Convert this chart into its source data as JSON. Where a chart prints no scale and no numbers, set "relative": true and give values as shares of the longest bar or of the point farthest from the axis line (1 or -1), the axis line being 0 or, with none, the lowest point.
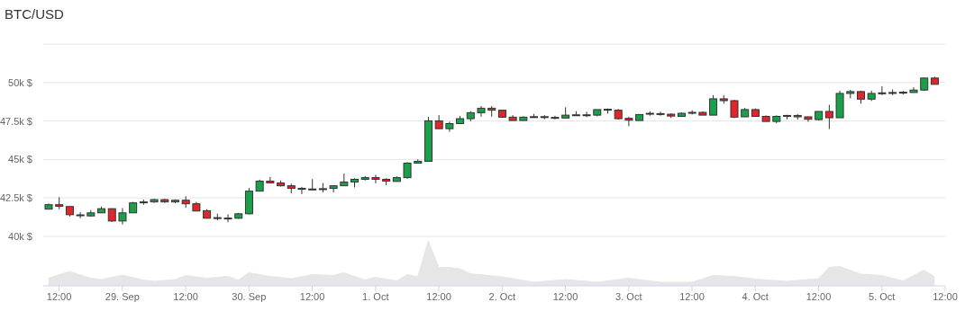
{
  "chart_data": [
    {
      "type": "candlestick",
      "title": "BTC/USD",
      "x": [
        "--09-28T10:00",
        "--09-28T12:00",
        "--09-28T14:00",
        "--09-28T16:00",
        "--09-28T18:00",
        "--09-28T20:00",
        "--09-28T22:00",
        "--09-29T00:00",
        "--09-29T02:00",
        "--09-29T04:00",
        "--09-29T06:00",
        "--09-29T08:00",
        "--09-29T10:00",
        "--09-29T12:00",
        "--09-29T14:00",
        "--09-29T16:00",
        "--09-29T18:00",
        "--09-29T20:00",
        "--09-29T22:00",
        "--09-30T00:00",
        "--09-30T02:00",
        "--09-30T04:00",
        "--09-30T06:00",
        "--09-30T08:00",
        "--09-30T10:00",
        "--09-30T12:00",
        "--09-30T14:00",
        "--09-30T16:00",
        "--09-30T18:00",
        "--09-30T20:00",
        "--09-30T22:00",
        "--10-01T00:00",
        "--10-01T02:00",
        "--10-01T04:00",
        "--10-01T06:00",
        "--10-01T08:00",
        "--10-01T10:00",
        "--10-01T12:00",
        "--10-01T14:00",
        "--10-01T16:00",
        "--10-01T18:00",
        "--10-01T20:00",
        "--10-01T22:00",
        "--10-02T00:00",
        "--10-02T02:00",
        "--10-02T04:00",
        "--10-02T06:00",
        "--10-02T08:00",
        "--10-02T10:00",
        "--10-02T12:00",
        "--10-02T14:00",
        "--10-02T16:00",
        "--10-02T18:00",
        "--10-02T20:00",
        "--10-02T22:00",
        "--10-03T00:00",
        "--10-03T02:00",
        "--10-03T04:00",
        "--10-03T06:00",
        "--10-03T08:00",
        "--10-03T10:00",
        "--10-03T12:00",
        "--10-03T14:00",
        "--10-03T16:00",
        "--10-03T18:00",
        "--10-03T20:00",
        "--10-03T22:00",
        "--10-04T00:00",
        "--10-04T02:00",
        "--10-04T04:00",
        "--10-04T06:00",
        "--10-04T08:00",
        "--10-04T10:00",
        "--10-04T12:00",
        "--10-04T14:00",
        "--10-04T16:00",
        "--10-04T18:00",
        "--10-04T20:00",
        "--10-04T22:00",
        "--10-05T00:00",
        "--10-05T02:00",
        "--10-05T04:00",
        "--10-05T06:00",
        "--10-05T08:00",
        "--10-05T10:00"
      ],
      "ohlc": [
        [
          41770,
          42140,
          41770,
          42060
        ],
        [
          42060,
          42550,
          41770,
          41960
        ],
        [
          41940,
          41940,
          41290,
          41410
        ],
        [
          41400,
          41570,
          41180,
          41360
        ],
        [
          41330,
          41710,
          41290,
          41530
        ],
        [
          41530,
          41940,
          41530,
          41800
        ],
        [
          41800,
          41820,
          40940,
          41000
        ],
        [
          41000,
          41840,
          40780,
          41530
        ],
        [
          41530,
          42240,
          41530,
          42180
        ],
        [
          42200,
          42390,
          42060,
          42240
        ],
        [
          42240,
          42450,
          42180,
          42390
        ],
        [
          42390,
          42450,
          42180,
          42240
        ],
        [
          42240,
          42410,
          42160,
          42350
        ],
        [
          42350,
          42610,
          41860,
          42120
        ],
        [
          42120,
          42240,
          41630,
          41650
        ],
        [
          41670,
          41770,
          41160,
          41180
        ],
        [
          41200,
          41470,
          41040,
          41220
        ],
        [
          41180,
          41430,
          40920,
          41190
        ],
        [
          41180,
          41530,
          41140,
          41470
        ],
        [
          41470,
          43140,
          41430,
          42940
        ],
        [
          42940,
          43690,
          42940,
          43590
        ],
        [
          43590,
          43860,
          43450,
          43470
        ],
        [
          43470,
          43630,
          43240,
          43290
        ],
        [
          43290,
          43430,
          42800,
          43120
        ],
        [
          43120,
          43220,
          42750,
          43080
        ],
        [
          43060,
          43730,
          43060,
          43080
        ],
        [
          43100,
          43470,
          42860,
          43080
        ],
        [
          43120,
          43330,
          42860,
          43290
        ],
        [
          43290,
          44080,
          43290,
          43530
        ],
        [
          43530,
          43780,
          43180,
          43710
        ],
        [
          43710,
          43920,
          43630,
          43820
        ],
        [
          43820,
          44000,
          43450,
          43710
        ],
        [
          43710,
          43780,
          43330,
          43590
        ],
        [
          43570,
          43900,
          43570,
          43820
        ],
        [
          43820,
          44820,
          43750,
          44760
        ],
        [
          44760,
          45000,
          44760,
          44880
        ],
        [
          44880,
          47760,
          44880,
          47510
        ],
        [
          47510,
          47880,
          47000,
          47000
        ],
        [
          47000,
          47450,
          46800,
          47330
        ],
        [
          47330,
          47820,
          47330,
          47650
        ],
        [
          47650,
          48140,
          47490,
          48040
        ],
        [
          48040,
          48470,
          47780,
          48330
        ],
        [
          48330,
          48470,
          47780,
          48200
        ],
        [
          48200,
          48200,
          47710,
          47750
        ],
        [
          47750,
          47880,
          47530,
          47530
        ],
        [
          47530,
          47800,
          47530,
          47750
        ],
        [
          47770,
          47960,
          47770,
          47780
        ],
        [
          47780,
          47880,
          47610,
          47760
        ],
        [
          47710,
          47840,
          47610,
          47730
        ],
        [
          47690,
          48390,
          47690,
          47880
        ],
        [
          47880,
          48140,
          47880,
          47900
        ],
        [
          47880,
          48100,
          47750,
          47900
        ],
        [
          47880,
          48240,
          47800,
          48240
        ],
        [
          48220,
          48310,
          47980,
          48260
        ],
        [
          48200,
          48280,
          47590,
          47650
        ],
        [
          47670,
          47780,
          47160,
          47550
        ],
        [
          47530,
          47920,
          47530,
          47920
        ],
        [
          47960,
          48120,
          47840,
          48000
        ],
        [
          47980,
          48100,
          47840,
          47960
        ],
        [
          47940,
          48000,
          47690,
          47820
        ],
        [
          47800,
          48060,
          47800,
          48000
        ],
        [
          48020,
          48200,
          47920,
          48060
        ],
        [
          48060,
          48120,
          47880,
          47880
        ],
        [
          47880,
          49180,
          47880,
          48940
        ],
        [
          48940,
          49180,
          48630,
          48820
        ],
        [
          48820,
          48880,
          47690,
          47750
        ],
        [
          47770,
          48350,
          47770,
          48240
        ],
        [
          48240,
          48310,
          47800,
          47800
        ],
        [
          47800,
          47860,
          47470,
          47470
        ],
        [
          47470,
          47860,
          47350,
          47800
        ],
        [
          47860,
          47900,
          47610,
          47840
        ],
        [
          47860,
          47940,
          47590,
          47770
        ],
        [
          47770,
          47780,
          47450,
          47610
        ],
        [
          47590,
          48120,
          47530,
          48120
        ],
        [
          48120,
          48550,
          46980,
          47710
        ],
        [
          47710,
          49470,
          47710,
          49290
        ],
        [
          49290,
          49530,
          48980,
          49410
        ],
        [
          49410,
          49470,
          48630,
          48920
        ],
        [
          48920,
          49470,
          48800,
          49290
        ],
        [
          49310,
          49760,
          49180,
          49330
        ],
        [
          49330,
          49550,
          49180,
          49350
        ],
        [
          49330,
          49450,
          49220,
          49370
        ],
        [
          49350,
          49690,
          49350,
          49510
        ],
        [
          49510,
          50310,
          49450,
          50290
        ],
        [
          50290,
          50370,
          49880,
          49880
        ]
      ],
      "colors": [
        "#1aa04b",
        "#e0262a",
        "#e0262a",
        "#e0262a",
        "#1aa04b",
        "#1aa04b",
        "#e0262a",
        "#1aa04b",
        "#1aa04b",
        "#1aa04b",
        "#1aa04b",
        "#e0262a",
        "#1aa04b",
        "#e0262a",
        "#e0262a",
        "#e0262a",
        "#1aa04b",
        "#1aa04b",
        "#1aa04b",
        "#1aa04b",
        "#1aa04b",
        "#e0262a",
        "#e0262a",
        "#e0262a",
        "#e0262a",
        "#1aa04b",
        "#e0262a",
        "#1aa04b",
        "#1aa04b",
        "#1aa04b",
        "#1aa04b",
        "#e0262a",
        "#e0262a",
        "#1aa04b",
        "#1aa04b",
        "#1aa04b",
        "#1aa04b",
        "#e0262a",
        "#1aa04b",
        "#1aa04b",
        "#1aa04b",
        "#1aa04b",
        "#e0262a",
        "#e0262a",
        "#e0262a",
        "#1aa04b",
        "#1aa04b",
        "#e0262a",
        "#1aa04b",
        "#1aa04b",
        "#1aa04b",
        "#1aa04b",
        "#1aa04b",
        "#1aa04b",
        "#e0262a",
        "#e0262a",
        "#1aa04b",
        "#1aa04b",
        "#e0262a",
        "#e0262a",
        "#1aa04b",
        "#1aa04b",
        "#e0262a",
        "#1aa04b",
        "#e0262a",
        "#e0262a",
        "#1aa04b",
        "#e0262a",
        "#e0262a",
        "#1aa04b",
        "#e0262a",
        "#e0262a",
        "#e0262a",
        "#1aa04b",
        "#e0262a",
        "#1aa04b",
        "#1aa04b",
        "#e0262a",
        "#1aa04b",
        "#1aa04b",
        "#1aa04b",
        "#1aa04b",
        "#1aa04b",
        "#1aa04b",
        "#e0262a"
      ],
      "xlim": [
        "--09-28T09:00",
        "--10-05T12:00"
      ],
      "ylim": [
        40000,
        52500
      ],
      "yticks": [
        {
          "value": 40000,
          "label": "40k $"
        },
        {
          "value": 42500,
          "label": "42.5k $"
        },
        {
          "value": 45000,
          "label": "45k $"
        },
        {
          "value": 47500,
          "label": "47.5k $"
        },
        {
          "value": 50000,
          "label": "50k $"
        },
        {
          "value": 52500,
          "label": null
        }
      ],
      "grid": "y",
      "tick_labels": "y"
    },
    {
      "type": "area",
      "relative": true,
      "color": "#e6e6e6",
      "x": [
        "--09-28T10:00",
        "--09-28T14:00",
        "--09-28T18:00",
        "--09-28T20:00",
        "--09-29T00:00",
        "--09-29T04:00",
        "--09-29T06:00",
        "--09-29T10:00",
        "--09-29T12:00",
        "--09-29T16:00",
        "--09-29T20:00",
        "--09-29T22:00",
        "--09-30T00:00",
        "--09-30T04:00",
        "--09-30T08:00",
        "--09-30T12:00",
        "--09-30T16:00",
        "--09-30T18:00",
        "--09-30T22:00",
        "--10-01T00:00",
        "--10-01T04:00",
        "--10-01T06:00",
        "--10-01T08:00",
        "--10-01T10:00",
        "--10-01T12:00",
        "--10-01T14:00",
        "--10-01T16:00",
        "--10-01T18:00",
        "--10-02T00:00",
        "--10-02T06:00",
        "--10-02T12:00",
        "--10-02T18:00",
        "--10-03T00:00",
        "--10-03T06:00",
        "--10-03T12:00",
        "--10-03T16:00",
        "--10-03T20:00",
        "--10-04T00:00",
        "--10-04T06:00",
        "--10-04T12:00",
        "--10-04T14:00",
        "--10-04T16:00",
        "--10-04T20:00",
        "--10-05T00:00",
        "--10-05T04:00",
        "--10-05T08:00",
        "--10-05T10:00"
      ],
      "values": [
        0.17,
        0.32,
        0.17,
        0.14,
        0.24,
        0.13,
        0.1,
        0.14,
        0.23,
        0.17,
        0.21,
        0.13,
        0.29,
        0.21,
        0.16,
        0.25,
        0.23,
        0.29,
        0.13,
        0.19,
        0.11,
        0.25,
        0.2,
        1,
        0.41,
        0.41,
        0.38,
        0.27,
        0.2,
        0.08,
        0.14,
        0.08,
        0.17,
        0.08,
        0.08,
        0.23,
        0.21,
        0.15,
        0.1,
        0.16,
        0.41,
        0.43,
        0.26,
        0.23,
        0.11,
        0.35,
        0.2
      ],
      "xlim": [
        "--09-28T09:00",
        "--10-05T12:00"
      ],
      "xticks": [
        {
          "value": "--09-28T12:00",
          "label": "12:00"
        },
        {
          "value": "--09-29T00:00",
          "label": "29. Sep"
        },
        {
          "value": "--09-29T12:00",
          "label": "12:00"
        },
        {
          "value": "--09-30T00:00",
          "label": "30. Sep"
        },
        {
          "value": "--09-30T12:00",
          "label": "12:00"
        },
        {
          "value": "--10-01T00:00",
          "label": "1. Oct"
        },
        {
          "value": "--10-01T12:00",
          "label": "12:00"
        },
        {
          "value": "--10-02T00:00",
          "label": "2. Oct"
        },
        {
          "value": "--10-02T12:00",
          "label": "12:00"
        },
        {
          "value": "--10-03T00:00",
          "label": "3. Oct"
        },
        {
          "value": "--10-03T12:00",
          "label": "12:00"
        },
        {
          "value": "--10-04T00:00",
          "label": "4. Oct"
        },
        {
          "value": "--10-04T12:00",
          "label": "12:00"
        },
        {
          "value": "--10-05T00:00",
          "label": "5. Oct"
        },
        {
          "value": "--10-05T12:00",
          "label": "12:00"
        }
      ],
      "tick_labels": "x"
    }
  ]
}
